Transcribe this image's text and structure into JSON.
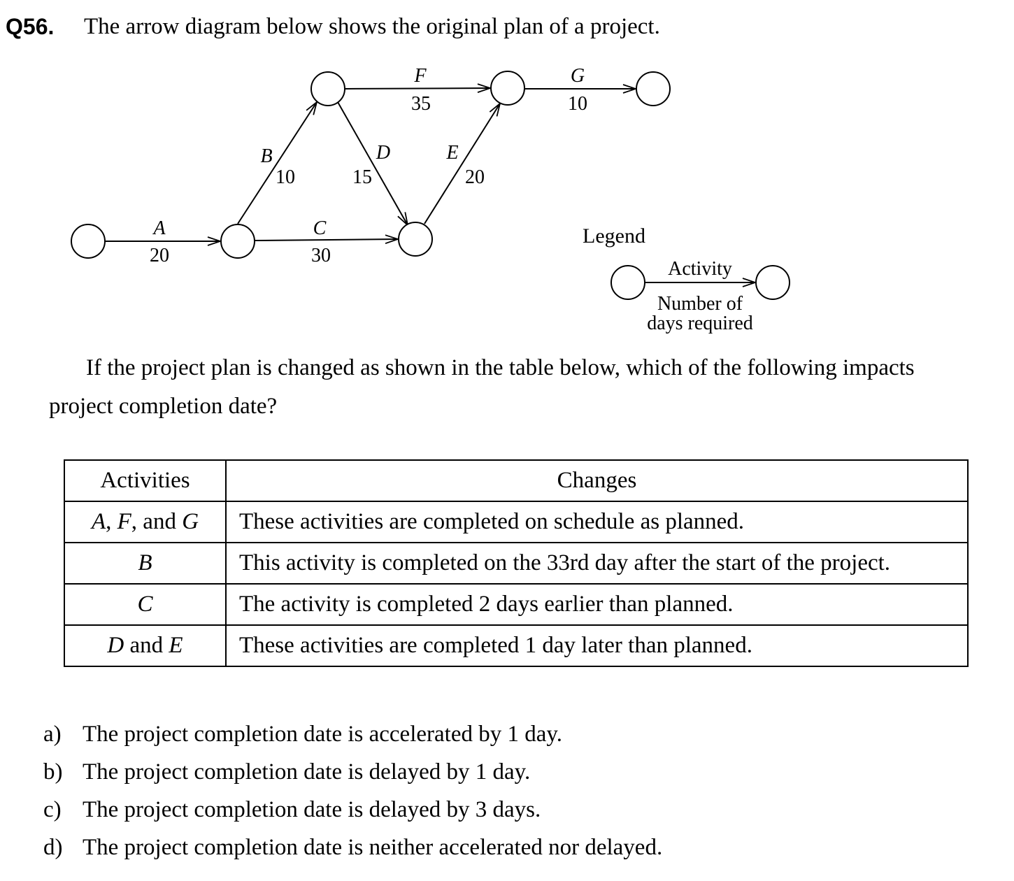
{
  "question": {
    "number": "Q56.",
    "text": "The arrow diagram below shows the original plan of a project."
  },
  "diagram": {
    "activities": [
      {
        "name": "A",
        "days": "20"
      },
      {
        "name": "B",
        "days": "10"
      },
      {
        "name": "C",
        "days": "30"
      },
      {
        "name": "D",
        "days": "15"
      },
      {
        "name": "E",
        "days": "20"
      },
      {
        "name": "F",
        "days": "35"
      },
      {
        "name": "G",
        "days": "10"
      }
    ],
    "legend": {
      "title": "Legend",
      "activity": "Activity",
      "days_line1": "Number of",
      "days_line2": "days required"
    }
  },
  "prompt": {
    "line1": "If the project plan is changed as shown in the table below, which of the following impacts",
    "line2": "project completion date?"
  },
  "table": {
    "headers": [
      "Activities",
      "Changes"
    ],
    "rows": [
      {
        "activities": [
          "A",
          ", ",
          "F",
          ", and ",
          "G"
        ],
        "change": "These activities are completed on schedule as planned."
      },
      {
        "activities": [
          "B"
        ],
        "change": "This activity is completed on the 33rd day after the start of the project."
      },
      {
        "activities": [
          "C"
        ],
        "change": "The activity is completed 2 days earlier than planned."
      },
      {
        "activities": [
          "D",
          " and ",
          "E"
        ],
        "change": "These activities are completed 1 day later than planned."
      }
    ]
  },
  "options": [
    {
      "label": "a)",
      "text": "The project completion date is accelerated by 1 day."
    },
    {
      "label": "b)",
      "text": "The project completion date is delayed by 1 day."
    },
    {
      "label": "c)",
      "text": "The project completion date is delayed by 3 days."
    },
    {
      "label": "d)",
      "text": "The project completion date is neither accelerated nor delayed."
    }
  ]
}
